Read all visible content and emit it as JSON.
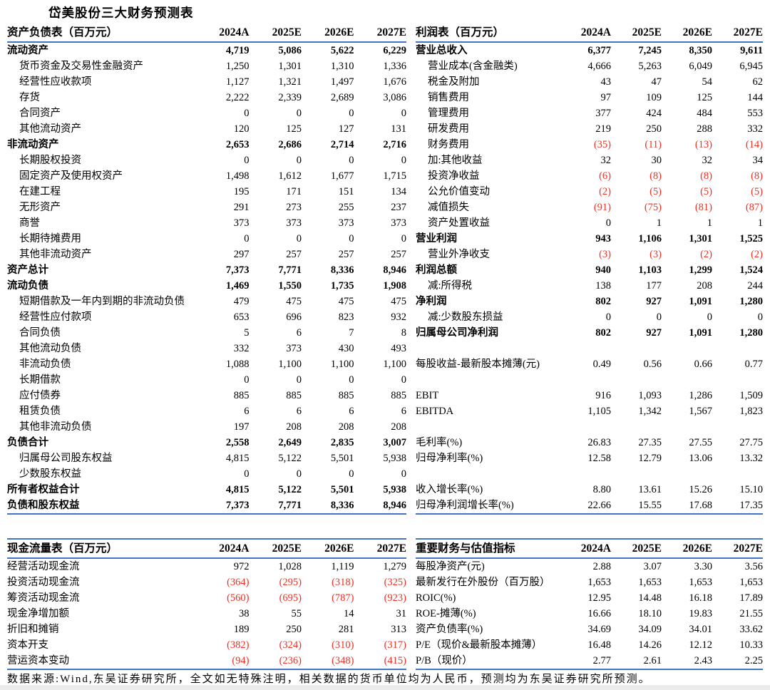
{
  "page_title": "岱美股份三大财务预测表",
  "columns": [
    "2024A",
    "2025E",
    "2026E",
    "2027E"
  ],
  "colors": {
    "accent_line": "#4472c4",
    "negative": "#ee3124"
  },
  "footer": "数据来源:Wind,东吴证券研究所，全文如无特殊注明，相关数据的货币单位均为人民币，预测均为东吴证券研究所预测。",
  "tables": {
    "balance_sheet": {
      "title": "资产负债表（百万元）",
      "rows": [
        {
          "label": "流动资产",
          "style": "bold",
          "values": [
            "4,719",
            "5,086",
            "5,622",
            "6,229"
          ]
        },
        {
          "label": "货币资金及交易性金融资产",
          "style": "indent",
          "values": [
            "1,250",
            "1,301",
            "1,310",
            "1,336"
          ]
        },
        {
          "label": "经营性应收款项",
          "style": "indent",
          "values": [
            "1,127",
            "1,321",
            "1,497",
            "1,676"
          ]
        },
        {
          "label": "存货",
          "style": "indent",
          "values": [
            "2,222",
            "2,339",
            "2,689",
            "3,086"
          ]
        },
        {
          "label": "合同资产",
          "style": "indent",
          "values": [
            "0",
            "0",
            "0",
            "0"
          ]
        },
        {
          "label": "其他流动资产",
          "style": "indent",
          "values": [
            "120",
            "125",
            "127",
            "131"
          ]
        },
        {
          "label": "非流动资产",
          "style": "bold",
          "values": [
            "2,653",
            "2,686",
            "2,714",
            "2,716"
          ]
        },
        {
          "label": "长期股权投资",
          "style": "indent",
          "values": [
            "0",
            "0",
            "0",
            "0"
          ]
        },
        {
          "label": "固定资产及使用权资产",
          "style": "indent",
          "values": [
            "1,498",
            "1,612",
            "1,677",
            "1,715"
          ]
        },
        {
          "label": "在建工程",
          "style": "indent",
          "values": [
            "195",
            "171",
            "151",
            "134"
          ]
        },
        {
          "label": "无形资产",
          "style": "indent",
          "values": [
            "291",
            "273",
            "255",
            "237"
          ]
        },
        {
          "label": "商誉",
          "style": "indent",
          "values": [
            "373",
            "373",
            "373",
            "373"
          ]
        },
        {
          "label": "长期待摊费用",
          "style": "indent",
          "values": [
            "0",
            "0",
            "0",
            "0"
          ]
        },
        {
          "label": "其他非流动资产",
          "style": "indent",
          "values": [
            "297",
            "257",
            "257",
            "257"
          ]
        },
        {
          "label": "资产总计",
          "style": "bold",
          "values": [
            "7,373",
            "7,771",
            "8,336",
            "8,946"
          ]
        },
        {
          "label": "流动负债",
          "style": "bold",
          "values": [
            "1,469",
            "1,550",
            "1,735",
            "1,908"
          ]
        },
        {
          "label": "短期借款及一年内到期的非流动负债",
          "style": "indent",
          "values": [
            "479",
            "475",
            "475",
            "475"
          ]
        },
        {
          "label": "经营性应付款项",
          "style": "indent",
          "values": [
            "653",
            "696",
            "823",
            "932"
          ]
        },
        {
          "label": "合同负债",
          "style": "indent",
          "values": [
            "5",
            "6",
            "7",
            "8"
          ]
        },
        {
          "label": "其他流动负债",
          "style": "indent",
          "values": [
            "332",
            "373",
            "430",
            "493"
          ]
        },
        {
          "label": "非流动负债",
          "style": "indent",
          "values": [
            "1,088",
            "1,100",
            "1,100",
            "1,100"
          ]
        },
        {
          "label": "长期借款",
          "style": "indent",
          "values": [
            "0",
            "0",
            "0",
            "0"
          ]
        },
        {
          "label": "应付债券",
          "style": "indent",
          "values": [
            "885",
            "885",
            "885",
            "885"
          ]
        },
        {
          "label": "租赁负债",
          "style": "indent",
          "values": [
            "6",
            "6",
            "6",
            "6"
          ]
        },
        {
          "label": "其他非流动负债",
          "style": "indent",
          "values": [
            "197",
            "208",
            "208",
            "208"
          ]
        },
        {
          "label": "负债合计",
          "style": "bold",
          "values": [
            "2,558",
            "2,649",
            "2,835",
            "3,007"
          ]
        },
        {
          "label": "归属母公司股东权益",
          "style": "indent",
          "values": [
            "4,815",
            "5,122",
            "5,501",
            "5,938"
          ]
        },
        {
          "label": "少数股东权益",
          "style": "indent",
          "values": [
            "0",
            "0",
            "0",
            "0"
          ]
        },
        {
          "label": "所有者权益合计",
          "style": "bold",
          "values": [
            "4,815",
            "5,122",
            "5,501",
            "5,938"
          ]
        },
        {
          "label": "负债和股东权益",
          "style": "bold",
          "values": [
            "7,373",
            "7,771",
            "8,336",
            "8,946"
          ]
        }
      ]
    },
    "income_statement": {
      "title": "利润表（百万元）",
      "rows": [
        {
          "label": "营业总收入",
          "style": "bold",
          "values": [
            "6,377",
            "7,245",
            "8,350",
            "9,611"
          ]
        },
        {
          "label": "营业成本(含金融类)",
          "style": "indent",
          "values": [
            "4,666",
            "5,263",
            "6,049",
            "6,945"
          ]
        },
        {
          "label": "税金及附加",
          "style": "indent",
          "values": [
            "43",
            "47",
            "54",
            "62"
          ]
        },
        {
          "label": "销售费用",
          "style": "indent",
          "values": [
            "97",
            "109",
            "125",
            "144"
          ]
        },
        {
          "label": "管理费用",
          "style": "indent",
          "values": [
            "377",
            "424",
            "484",
            "553"
          ]
        },
        {
          "label": "研发费用",
          "style": "indent",
          "values": [
            "219",
            "250",
            "288",
            "332"
          ]
        },
        {
          "label": "财务费用",
          "style": "indent",
          "values": [
            "(35)",
            "(11)",
            "(13)",
            "(14)"
          ]
        },
        {
          "label": "加:其他收益",
          "style": "indent",
          "values": [
            "32",
            "30",
            "32",
            "34"
          ]
        },
        {
          "label": "投资净收益",
          "style": "indent",
          "values": [
            "(6)",
            "(8)",
            "(8)",
            "(8)"
          ]
        },
        {
          "label": "公允价值变动",
          "style": "indent",
          "values": [
            "(2)",
            "(5)",
            "(5)",
            "(5)"
          ]
        },
        {
          "label": "减值损失",
          "style": "indent",
          "values": [
            "(91)",
            "(75)",
            "(81)",
            "(87)"
          ]
        },
        {
          "label": "资产处置收益",
          "style": "indent",
          "values": [
            "0",
            "1",
            "1",
            "1"
          ]
        },
        {
          "label": "营业利润",
          "style": "bold",
          "values": [
            "943",
            "1,106",
            "1,301",
            "1,525"
          ]
        },
        {
          "label": "营业外净收支",
          "style": "indent",
          "values": [
            "(3)",
            "(3)",
            "(2)",
            "(2)"
          ]
        },
        {
          "label": "利润总额",
          "style": "bold",
          "values": [
            "940",
            "1,103",
            "1,299",
            "1,524"
          ]
        },
        {
          "label": "减:所得税",
          "style": "indent",
          "values": [
            "138",
            "177",
            "208",
            "244"
          ]
        },
        {
          "label": "净利润",
          "style": "bold",
          "values": [
            "802",
            "927",
            "1,091",
            "1,280"
          ]
        },
        {
          "label": "减:少数股东损益",
          "style": "indent",
          "values": [
            "0",
            "0",
            "0",
            "0"
          ]
        },
        {
          "label": "归属母公司净利润",
          "style": "bold",
          "values": [
            "802",
            "927",
            "1,091",
            "1,280"
          ]
        },
        {
          "label": "",
          "style": "blank",
          "values": [
            "",
            "",
            "",
            ""
          ]
        },
        {
          "label": "每股收益-最新股本摊薄(元)",
          "style": "",
          "values": [
            "0.49",
            "0.56",
            "0.66",
            "0.77"
          ]
        },
        {
          "label": "",
          "style": "blank",
          "values": [
            "",
            "",
            "",
            ""
          ]
        },
        {
          "label": "EBIT",
          "style": "",
          "values": [
            "916",
            "1,093",
            "1,286",
            "1,509"
          ]
        },
        {
          "label": "EBITDA",
          "style": "",
          "values": [
            "1,105",
            "1,342",
            "1,567",
            "1,823"
          ]
        },
        {
          "label": "",
          "style": "blank",
          "values": [
            "",
            "",
            "",
            ""
          ]
        },
        {
          "label": "毛利率(%)",
          "style": "",
          "values": [
            "26.83",
            "27.35",
            "27.55",
            "27.75"
          ]
        },
        {
          "label": "归母净利率(%)",
          "style": "",
          "values": [
            "12.58",
            "12.79",
            "13.06",
            "13.32"
          ]
        },
        {
          "label": "",
          "style": "blank",
          "values": [
            "",
            "",
            "",
            ""
          ]
        },
        {
          "label": "收入增长率(%)",
          "style": "",
          "values": [
            "8.80",
            "13.61",
            "15.26",
            "15.10"
          ]
        },
        {
          "label": "归母净利润增长率(%)",
          "style": "",
          "values": [
            "22.66",
            "15.55",
            "17.68",
            "17.35"
          ]
        }
      ]
    },
    "cash_flow": {
      "title": "现金流量表（百万元）",
      "rows": [
        {
          "label": "经营活动现金流",
          "style": "",
          "values": [
            "972",
            "1,028",
            "1,119",
            "1,279"
          ]
        },
        {
          "label": "投资活动现金流",
          "style": "",
          "values": [
            "(364)",
            "(295)",
            "(318)",
            "(325)"
          ]
        },
        {
          "label": "筹资活动现金流",
          "style": "",
          "values": [
            "(560)",
            "(695)",
            "(787)",
            "(923)"
          ]
        },
        {
          "label": "现金净增加额",
          "style": "",
          "values": [
            "38",
            "55",
            "14",
            "31"
          ]
        },
        {
          "label": "折旧和摊销",
          "style": "",
          "values": [
            "189",
            "250",
            "281",
            "313"
          ]
        },
        {
          "label": "资本开支",
          "style": "",
          "values": [
            "(382)",
            "(324)",
            "(310)",
            "(317)"
          ]
        },
        {
          "label": "营运资本变动",
          "style": "",
          "values": [
            "(94)",
            "(236)",
            "(348)",
            "(415)"
          ]
        }
      ]
    },
    "valuation_metrics": {
      "title": "重要财务与估值指标",
      "rows": [
        {
          "label": "每股净资产(元)",
          "style": "",
          "values": [
            "2.88",
            "3.07",
            "3.30",
            "3.56"
          ]
        },
        {
          "label": "最新发行在外股份（百万股）",
          "style": "",
          "values": [
            "1,653",
            "1,653",
            "1,653",
            "1,653"
          ]
        },
        {
          "label": "ROIC(%)",
          "style": "",
          "values": [
            "12.95",
            "14.48",
            "16.18",
            "17.89"
          ]
        },
        {
          "label": "ROE-摊薄(%)",
          "style": "",
          "values": [
            "16.66",
            "18.10",
            "19.83",
            "21.55"
          ]
        },
        {
          "label": "资产负债率(%)",
          "style": "",
          "values": [
            "34.69",
            "34.09",
            "34.01",
            "33.62"
          ]
        },
        {
          "label": "P/E（现价&最新股本摊薄）",
          "style": "",
          "values": [
            "16.48",
            "14.26",
            "12.12",
            "10.33"
          ]
        },
        {
          "label": "P/B（现价）",
          "style": "",
          "values": [
            "2.77",
            "2.61",
            "2.43",
            "2.25"
          ]
        }
      ]
    }
  }
}
